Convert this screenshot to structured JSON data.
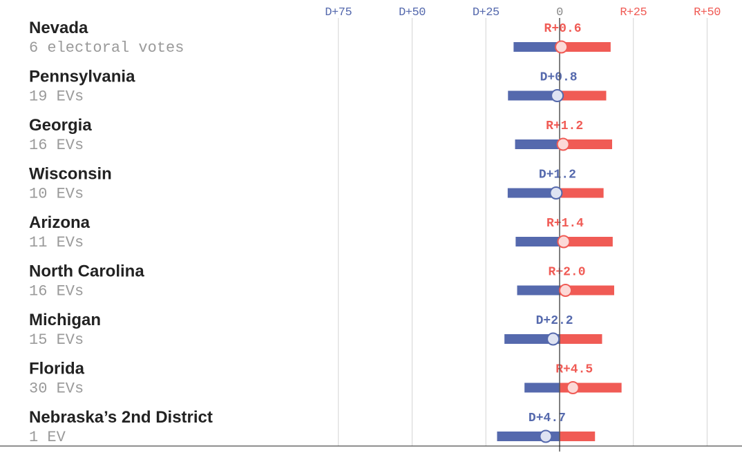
{
  "chart_data": {
    "type": "range-dot",
    "title": "",
    "x_axis": {
      "min": -75,
      "max": 50,
      "ticks": [
        {
          "value": -75,
          "label": "D+75"
        },
        {
          "value": -50,
          "label": "D+50"
        },
        {
          "value": -25,
          "label": "D+25"
        },
        {
          "value": 0,
          "label": "0"
        },
        {
          "value": 25,
          "label": "R+25"
        },
        {
          "value": 50,
          "label": "R+50"
        }
      ]
    },
    "rows": [
      {
        "state": "Nevada",
        "evs": "6 electoral votes",
        "margin": 0.6,
        "margin_label": "R+0.6",
        "low": -15.6,
        "high": 17.3
      },
      {
        "state": "Pennsylvania",
        "evs": "19 EVs",
        "margin": -0.8,
        "margin_label": "D+0.8",
        "low": -17.5,
        "high": 15.8
      },
      {
        "state": "Georgia",
        "evs": "16 EVs",
        "margin": 1.2,
        "margin_label": "R+1.2",
        "low": -15.1,
        "high": 17.8
      },
      {
        "state": "Wisconsin",
        "evs": "10 EVs",
        "margin": -1.2,
        "margin_label": "D+1.2",
        "low": -17.6,
        "high": 14.9
      },
      {
        "state": "Arizona",
        "evs": "11 EVs",
        "margin": 1.4,
        "margin_label": "R+1.4",
        "low": -14.9,
        "high": 18.0
      },
      {
        "state": "North Carolina",
        "evs": "16 EVs",
        "margin": 2.0,
        "margin_label": "R+2.0",
        "low": -14.4,
        "high": 18.5
      },
      {
        "state": "Michigan",
        "evs": "15 EVs",
        "margin": -2.2,
        "margin_label": "D+2.2",
        "low": -18.7,
        "high": 14.4
      },
      {
        "state": "Florida",
        "evs": "30 EVs",
        "margin": 4.5,
        "margin_label": "R+4.5",
        "low": -11.9,
        "high": 21.0
      },
      {
        "state": "Nebraska’s 2nd District",
        "evs": "1 EV",
        "margin": -4.7,
        "margin_label": "D+4.7",
        "low": -21.2,
        "high": 12.0
      }
    ]
  },
  "colors": {
    "dem": "#5569ad",
    "rep": "#f05b55",
    "dem_dot": "#dfe3f2",
    "rep_dot": "#fcd9d7",
    "grid": "#d4d4d4",
    "zero": "#555555",
    "state_text": "#222222",
    "ev_text": "#9a9a9a"
  }
}
